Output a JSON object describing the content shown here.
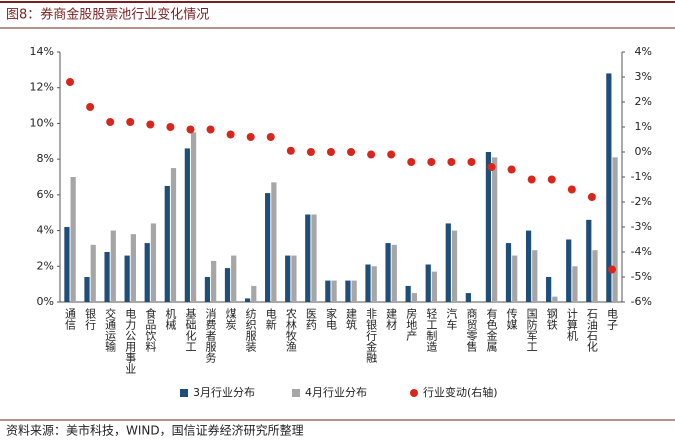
{
  "chart_data": {
    "type": "bar_dot",
    "title": "图8：券商金股股票池行业变化情况",
    "source": "资料来源：美市科技，WIND，国信证券经济研究所整理",
    "categories": [
      "通信",
      "银行",
      "交通运输",
      "电力公用事业",
      "食品饮料",
      "机械",
      "基础化工",
      "消费者服务",
      "煤炭",
      "纺织服装",
      "电新",
      "农林牧渔",
      "医药",
      "家电",
      "建筑",
      "非银行金融",
      "建材",
      "房地产",
      "轻工制造",
      "汽车",
      "商贸零售",
      "有色金属",
      "传媒",
      "国防军工",
      "钢铁",
      "计算机",
      "石油石化",
      "电子"
    ],
    "series": [
      {
        "name": "3月行业分布",
        "color": "#1f4e79",
        "values": [
          4.2,
          1.4,
          2.8,
          2.6,
          3.3,
          6.5,
          8.6,
          1.4,
          1.9,
          0.2,
          6.1,
          2.6,
          4.9,
          1.2,
          1.2,
          2.1,
          3.3,
          0.9,
          2.1,
          4.4,
          0.5,
          8.4,
          3.3,
          4.0,
          1.4,
          3.5,
          4.6,
          12.8
        ]
      },
      {
        "name": "4月行业分布",
        "color": "#a6a6a6",
        "values": [
          7.0,
          3.2,
          4.0,
          3.8,
          4.4,
          7.5,
          9.5,
          2.3,
          2.6,
          0.9,
          6.7,
          2.6,
          4.9,
          1.2,
          1.2,
          2.0,
          3.2,
          0.5,
          1.7,
          4.0,
          0.0,
          8.1,
          2.6,
          2.9,
          0.3,
          2.0,
          2.9,
          8.1
        ]
      },
      {
        "name": "行业变动(右轴)",
        "color": "#d9261c",
        "axis": "y2",
        "values": [
          2.8,
          1.8,
          1.2,
          1.2,
          1.1,
          1.0,
          0.9,
          0.9,
          0.7,
          0.6,
          0.6,
          0.05,
          0.0,
          0.0,
          0.0,
          -0.1,
          -0.1,
          -0.4,
          -0.4,
          -0.4,
          -0.4,
          -0.6,
          -0.7,
          -1.1,
          -1.1,
          -1.5,
          -1.8,
          -4.7
        ]
      }
    ],
    "ylim": [
      0,
      14
    ],
    "yticks": [
      {
        "value": 0,
        "label": "0%"
      },
      {
        "value": 2,
        "label": "2%"
      },
      {
        "value": 4,
        "label": "4%"
      },
      {
        "value": 6,
        "label": "6%"
      },
      {
        "value": 8,
        "label": "8%"
      },
      {
        "value": 10,
        "label": "10%"
      },
      {
        "value": 12,
        "label": "12%"
      },
      {
        "value": 14,
        "label": "14%"
      }
    ],
    "y2lim": [
      -6,
      4
    ],
    "y2ticks": [
      {
        "value": -6,
        "label": "-6%"
      },
      {
        "value": -5,
        "label": "-5%"
      },
      {
        "value": -4,
        "label": "-4%"
      },
      {
        "value": -3,
        "label": "-3%"
      },
      {
        "value": -2,
        "label": "-2%"
      },
      {
        "value": -1,
        "label": "-1%"
      },
      {
        "value": 0,
        "label": "0%"
      },
      {
        "value": 1,
        "label": "1%"
      },
      {
        "value": 2,
        "label": "2%"
      },
      {
        "value": 3,
        "label": "3%"
      },
      {
        "value": 4,
        "label": "4%"
      }
    ]
  }
}
